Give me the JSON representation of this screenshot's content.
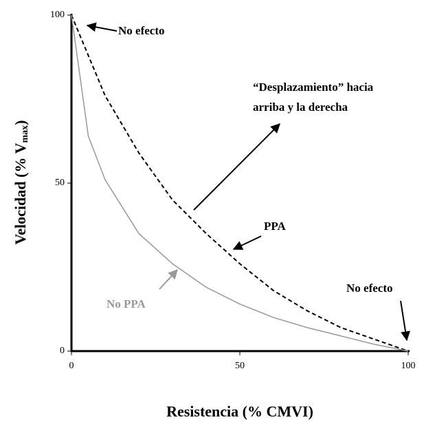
{
  "chart_data": {
    "type": "line",
    "x": [
      0,
      5,
      10,
      20,
      30,
      40,
      50,
      60,
      70,
      80,
      90,
      100
    ],
    "series": [
      {
        "name": "PPA",
        "color": "#000000",
        "dash": true,
        "values": [
          100,
          88,
          76,
          59,
          45,
          35,
          26,
          18,
          12,
          7,
          3.5,
          0
        ]
      },
      {
        "name": "No PPA",
        "color": "#999999",
        "dash": false,
        "values": [
          100,
          64,
          51,
          35,
          26,
          19,
          14,
          10,
          7,
          4.5,
          2,
          0
        ]
      }
    ],
    "xlim": [
      0,
      100
    ],
    "ylim": [
      0,
      100
    ],
    "xticks": [
      0,
      50,
      100
    ],
    "yticks": [
      0,
      50,
      100
    ],
    "xlabel": "Resistencia (% CMVI)",
    "ylabel": "Velocidad (% V",
    "ylabel_sub": "max",
    "ylabel_end": ")",
    "annotations": [
      "No efecto",
      "“Desplazamiento” hacia",
      "arriba y la derecha",
      "No efecto"
    ]
  }
}
